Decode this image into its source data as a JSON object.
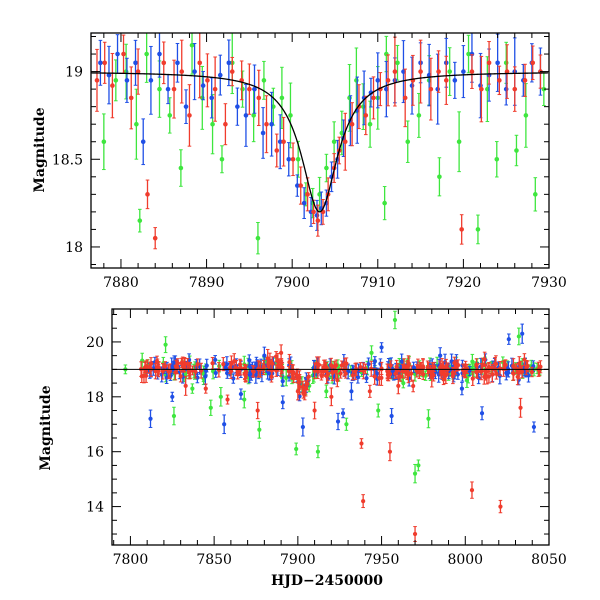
{
  "colors": {
    "red": "#f03c2d",
    "blue": "#1f4fe6",
    "green": "#3ee63e",
    "model": "#000000"
  },
  "chart_data": [
    {
      "type": "scatter",
      "name": "top-panel",
      "ylabel": "Magnitude",
      "xlabel": "",
      "xlim": [
        7876.5,
        7930
      ],
      "ylim": [
        19.22,
        17.88
      ],
      "y_inverted": true,
      "xticks_major": [
        7880,
        7890,
        7900,
        7910,
        7920,
        7930
      ],
      "xtick_labels": [
        "7880",
        "7890",
        "7900",
        "7910",
        "7920",
        "7930"
      ],
      "yticks_major": [
        18,
        18.5,
        19
      ],
      "ytick_labels": [
        "18",
        "18.5",
        "19"
      ],
      "model_curve": {
        "baseline": 19.0,
        "peak_mag": 18.2,
        "t0": 7903.2,
        "tE": 2.6,
        "color": "black"
      },
      "series": [
        {
          "color": "red",
          "points": [
            [
              7877.2,
              18.95
            ],
            [
              7878.1,
              19.05
            ],
            [
              7879.0,
              18.92
            ],
            [
              7880.3,
              19.1
            ],
            [
              7881.2,
              18.85
            ],
            [
              7882.0,
              19.0
            ],
            [
              7883.1,
              18.3
            ],
            [
              7884.0,
              18.05
            ],
            [
              7885.0,
              19.05
            ],
            [
              7886.2,
              18.9
            ],
            [
              7887.1,
              19.0
            ],
            [
              7888.0,
              18.75
            ],
            [
              7889.2,
              19.05
            ],
            [
              7890.1,
              18.95
            ],
            [
              7891.0,
              18.9
            ],
            [
              7892.2,
              18.7
            ],
            [
              7893.0,
              19.0
            ],
            [
              7894.1,
              18.95
            ],
            [
              7895.0,
              18.9
            ],
            [
              7896.1,
              18.85
            ],
            [
              7897.0,
              18.7
            ],
            [
              7898.2,
              18.55
            ],
            [
              7899.0,
              18.6
            ],
            [
              7900.1,
              18.5
            ],
            [
              7901.0,
              18.35
            ],
            [
              7901.8,
              18.3
            ],
            [
              7902.5,
              18.2
            ],
            [
              7903.0,
              18.15
            ],
            [
              7903.6,
              18.2
            ],
            [
              7904.2,
              18.3
            ],
            [
              7904.9,
              18.45
            ],
            [
              7905.5,
              18.55
            ],
            [
              7906.2,
              18.6
            ],
            [
              7907.0,
              18.7
            ],
            [
              7907.8,
              18.8
            ],
            [
              7908.6,
              18.75
            ],
            [
              7909.5,
              18.85
            ],
            [
              7910.3,
              18.9
            ],
            [
              7911.2,
              18.95
            ],
            [
              7912.0,
              19.0
            ],
            [
              7913.2,
              18.85
            ],
            [
              7914.1,
              18.95
            ],
            [
              7915.0,
              19.0
            ],
            [
              7916.2,
              18.9
            ],
            [
              7917.1,
              19.0
            ],
            [
              7918.0,
              18.95
            ],
            [
              7919.8,
              18.1
            ],
            [
              7921.0,
              19.0
            ],
            [
              7922.1,
              18.9
            ],
            [
              7923.0,
              19.05
            ],
            [
              7924.2,
              18.95
            ],
            [
              7925.1,
              19.0
            ],
            [
              7926.0,
              18.9
            ],
            [
              7927.2,
              18.95
            ],
            [
              7928.1,
              19.05
            ],
            [
              7929.0,
              19.0
            ]
          ]
        },
        {
          "color": "blue",
          "points": [
            [
              7877.6,
              19.05
            ],
            [
              7878.6,
              18.98
            ],
            [
              7879.6,
              19.1
            ],
            [
              7880.7,
              18.95
            ],
            [
              7881.7,
              19.05
            ],
            [
              7882.6,
              18.6
            ],
            [
              7883.5,
              18.95
            ],
            [
              7884.5,
              19.1
            ],
            [
              7885.5,
              18.9
            ],
            [
              7886.6,
              19.05
            ],
            [
              7887.6,
              18.8
            ],
            [
              7888.6,
              19.0
            ],
            [
              7889.6,
              18.92
            ],
            [
              7890.6,
              18.85
            ],
            [
              7891.6,
              18.98
            ],
            [
              7892.6,
              19.05
            ],
            [
              7893.6,
              18.8
            ],
            [
              7894.6,
              18.75
            ],
            [
              7895.6,
              18.9
            ],
            [
              7896.6,
              18.65
            ],
            [
              7897.6,
              18.7
            ],
            [
              7898.6,
              18.6
            ],
            [
              7899.6,
              18.5
            ],
            [
              7900.6,
              18.35
            ],
            [
              7901.4,
              18.25
            ],
            [
              7902.2,
              18.2
            ],
            [
              7902.9,
              18.18
            ],
            [
              7903.4,
              18.22
            ],
            [
              7904.0,
              18.25
            ],
            [
              7904.6,
              18.4
            ],
            [
              7905.3,
              18.5
            ],
            [
              7906.0,
              18.62
            ],
            [
              7906.8,
              18.72
            ],
            [
              7907.6,
              18.78
            ],
            [
              7908.4,
              18.85
            ],
            [
              7909.2,
              18.88
            ],
            [
              7910.0,
              18.95
            ],
            [
              7911.0,
              18.9
            ],
            [
              7912.0,
              18.95
            ],
            [
              7913.0,
              19.0
            ],
            [
              7914.0,
              18.92
            ],
            [
              7915.0,
              19.05
            ],
            [
              7916.0,
              18.98
            ],
            [
              7917.0,
              18.9
            ],
            [
              7918.0,
              19.05
            ],
            [
              7919.0,
              18.95
            ],
            [
              7920.0,
              19.0
            ],
            [
              7921.0,
              19.1
            ],
            [
              7922.0,
              18.92
            ],
            [
              7923.0,
              18.98
            ],
            [
              7924.0,
              19.05
            ],
            [
              7925.0,
              18.9
            ],
            [
              7926.0,
              19.0
            ],
            [
              7927.0,
              18.95
            ],
            [
              7928.0,
              19.05
            ],
            [
              7929.0,
              19.0
            ]
          ]
        },
        {
          "color": "green",
          "points": [
            [
              7878.0,
              18.6
            ],
            [
              7879.4,
              18.95
            ],
            [
              7880.6,
              19.0
            ],
            [
              7881.8,
              18.7
            ],
            [
              7883.0,
              19.1
            ],
            [
              7884.5,
              18.9
            ],
            [
              7885.7,
              18.75
            ],
            [
              7887.0,
              18.45
            ],
            [
              7888.3,
              19.15
            ],
            [
              7889.5,
              18.85
            ],
            [
              7890.7,
              18.7
            ],
            [
              7891.8,
              18.5
            ],
            [
              7893.0,
              19.05
            ],
            [
              7894.2,
              18.9
            ],
            [
              7895.5,
              18.75
            ],
            [
              7896.7,
              18.95
            ],
            [
              7897.8,
              18.8
            ],
            [
              7898.8,
              18.85
            ],
            [
              7899.8,
              18.75
            ],
            [
              7900.7,
              18.5
            ],
            [
              7901.6,
              18.3
            ],
            [
              7902.4,
              18.25
            ],
            [
              7903.2,
              18.3
            ],
            [
              7904.0,
              18.45
            ],
            [
              7904.9,
              18.6
            ],
            [
              7905.8,
              18.65
            ],
            [
              7906.7,
              18.85
            ],
            [
              7907.5,
              18.95
            ],
            [
              7908.3,
              18.8
            ],
            [
              7909.1,
              18.7
            ],
            [
              7910.0,
              18.85
            ],
            [
              7911.0,
              19.1
            ],
            [
              7912.3,
              19.05
            ],
            [
              7913.5,
              18.6
            ],
            [
              7914.8,
              18.75
            ],
            [
              7916.0,
              18.95
            ],
            [
              7917.2,
              18.4
            ],
            [
              7918.4,
              19.0
            ],
            [
              7919.5,
              18.6
            ],
            [
              7920.6,
              19.1
            ],
            [
              7921.7,
              18.1
            ],
            [
              7922.8,
              18.9
            ],
            [
              7923.9,
              18.5
            ],
            [
              7925.0,
              19.05
            ],
            [
              7926.2,
              18.55
            ],
            [
              7927.3,
              18.75
            ],
            [
              7928.4,
              18.3
            ],
            [
              7929.4,
              18.9
            ],
            [
              7896.0,
              18.05
            ],
            [
              7882.2,
              18.15
            ],
            [
              7910.8,
              18.25
            ]
          ]
        }
      ]
    },
    {
      "type": "scatter",
      "name": "bottom-panel",
      "ylabel": "Magnitude",
      "xlabel": "HJD−2450000",
      "xlim": [
        7789,
        8050
      ],
      "ylim": [
        21.2,
        12.6
      ],
      "y_inverted": true,
      "xticks_major": [
        7800,
        7850,
        7900,
        7950,
        8000,
        8050
      ],
      "xtick_labels": [
        "7800",
        "7850",
        "7900",
        "7950",
        "8000",
        "8050"
      ],
      "yticks_major": [
        14,
        16,
        18,
        20
      ],
      "ytick_labels": [
        "14",
        "16",
        "18",
        "20"
      ],
      "dense_band": {
        "x_start": 7806,
        "x_end": 8045,
        "mag_center": 19.0,
        "mag_scatter": 0.15,
        "event_t0": 7903.2,
        "event_peak": 18.2,
        "event_tE": 2.6
      },
      "series": [
        {
          "color": "red",
          "outliers": [
            [
              7833,
              18.4
            ],
            [
              7845,
              18.3
            ],
            [
              7858,
              17.9
            ],
            [
              7862,
              19.3
            ],
            [
              7876,
              17.5
            ],
            [
              7882,
              19.4
            ],
            [
              7900,
              18.2
            ],
            [
              7910,
              17.5
            ],
            [
              7938,
              16.3
            ],
            [
              7939,
              14.2
            ],
            [
              7943,
              18.2
            ],
            [
              7955,
              16.0
            ],
            [
              7960,
              18.4
            ],
            [
              7966,
              18.8
            ],
            [
              7970,
              13.0
            ],
            [
              7980,
              18.7
            ],
            [
              8004,
              14.6
            ],
            [
              8021,
              14.0
            ],
            [
              8033,
              17.6
            ],
            [
              7890,
              19.6
            ],
            [
              7920,
              18.0
            ]
          ]
        },
        {
          "color": "blue",
          "outliers": [
            [
              7812,
              17.2
            ],
            [
              7825,
              18.0
            ],
            [
              7840,
              18.7
            ],
            [
              7856,
              17.0
            ],
            [
              7866,
              18.1
            ],
            [
              7891,
              17.8
            ],
            [
              7903,
              16.9
            ],
            [
              7924,
              17.1
            ],
            [
              7927,
              17.4
            ],
            [
              7932,
              18.2
            ],
            [
              7946,
              19.3
            ],
            [
              7950,
              19.8
            ],
            [
              7956,
              17.3
            ],
            [
              7985,
              19.5
            ],
            [
              7998,
              18.3
            ],
            [
              8010,
              17.4
            ],
            [
              8026,
              20.1
            ],
            [
              8034,
              20.3
            ],
            [
              8041,
              16.9
            ],
            [
              7880,
              19.5
            ]
          ]
        },
        {
          "color": "green",
          "outliers": [
            [
              7797,
              19.0
            ],
            [
              7821,
              19.9
            ],
            [
              7826,
              17.3
            ],
            [
              7837,
              18.3
            ],
            [
              7848,
              17.6
            ],
            [
              7854,
              18.0
            ],
            [
              7868,
              17.9
            ],
            [
              7877,
              16.8
            ],
            [
              7899,
              16.1
            ],
            [
              7912,
              16.0
            ],
            [
              7917,
              18.2
            ],
            [
              7929,
              17.0
            ],
            [
              7948,
              17.5
            ],
            [
              7958,
              20.8
            ],
            [
              7963,
              18.5
            ],
            [
              7970,
              15.2
            ],
            [
              7972,
              15.5
            ],
            [
              7978,
              17.2
            ],
            [
              7990,
              18.9
            ],
            [
              8001,
              18.6
            ],
            [
              8032,
              20.2
            ],
            [
              7944,
              19.6
            ]
          ]
        }
      ]
    }
  ]
}
